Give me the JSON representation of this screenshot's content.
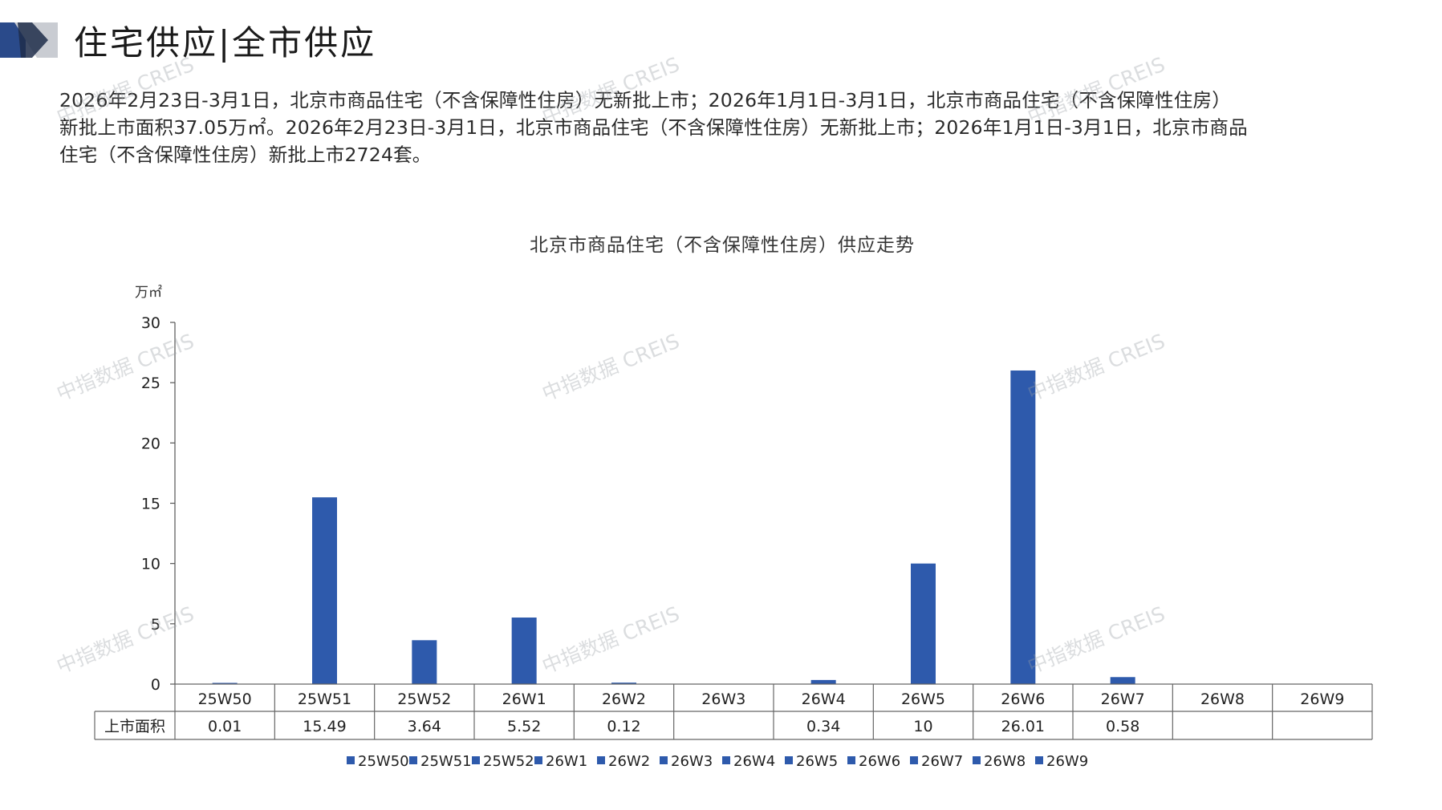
{
  "header": {
    "title": "住宅供应|全市供应",
    "summary_line1": "2026年2月23日-3月1日，北京市商品住宅（不含保障性住房）无新批上市；2026年1月1日-3月1日，北京市商品住宅（不含保障性住房）",
    "summary_line2": "新批上市面积37.05万㎡。2026年2月23日-3月1日，北京市商品住宅（不含保障性住房）无新批上市；2026年1月1日-3月1日，北京市商品",
    "summary_line3": "住宅（不含保障性住房）新批上市2724套。"
  },
  "watermark": "中指数据 CREIS",
  "colors": {
    "bar": "#2e5aac",
    "axis": "#555555",
    "text": "#222222",
    "accent_dark": "#2a4a8a",
    "accent_light": "#c9ccd2"
  },
  "chart_data": {
    "type": "bar",
    "title": "北京市商品住宅（不含保障性住房）供应走势",
    "ylabel": "万㎡",
    "ylim": [
      0,
      30
    ],
    "yticks": [
      0,
      5,
      10,
      15,
      20,
      25,
      30
    ],
    "categories": [
      "25W50",
      "25W51",
      "25W52",
      "26W1",
      "26W2",
      "26W3",
      "26W4",
      "26W5",
      "26W6",
      "26W7",
      "26W8",
      "26W9"
    ],
    "series": [
      {
        "name": "上市面积",
        "values": [
          0.01,
          15.49,
          3.64,
          5.52,
          0.12,
          null,
          0.34,
          10,
          26.01,
          0.58,
          null,
          null
        ],
        "labels": [
          "0.01",
          "15.49",
          "3.64",
          "5.52",
          "0.12",
          "",
          "0.34",
          "10",
          "26.01",
          "0.58",
          "",
          ""
        ]
      }
    ],
    "legend": [
      "25W50",
      "25W51",
      "25W52",
      "26W1",
      "26W2",
      "26W3",
      "26W4",
      "26W5",
      "26W6",
      "26W7",
      "26W8",
      "26W9"
    ],
    "legend_position": "bottom",
    "grid": false,
    "data_table": true
  }
}
